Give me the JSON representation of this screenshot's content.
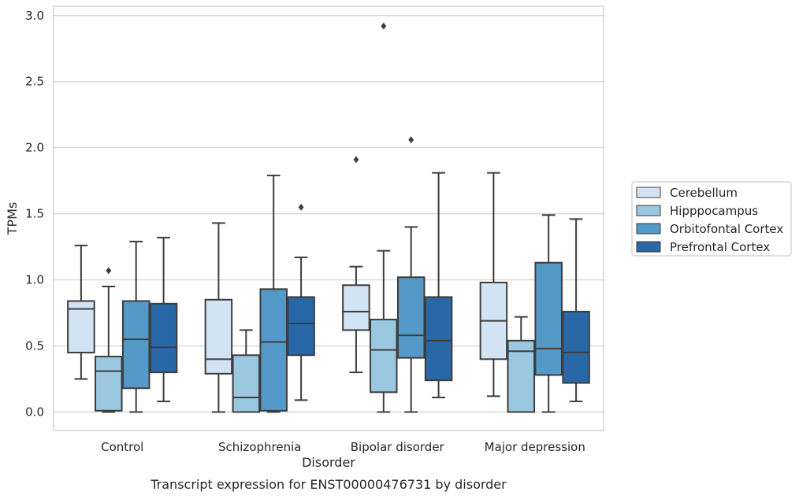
{
  "caption": "Transcript expression for ENST00000476731 by disorder",
  "chart_data": {
    "type": "boxplot",
    "xlabel": "Disorder",
    "ylabel": "TPMs",
    "ylim": [
      -0.14,
      3.07
    ],
    "yticks": [
      "0.0",
      "0.5",
      "1.0",
      "1.5",
      "2.0",
      "2.5",
      "3.0"
    ],
    "grid": true,
    "legend_position": "right",
    "categories": [
      "Control",
      "Schizophrenia",
      "Bipolar disorder",
      "Major depression"
    ],
    "series": [
      {
        "name": "Cerebellum",
        "color": "#d2e3f3",
        "boxes": [
          {
            "whislo": 0.25,
            "q1": 0.45,
            "med": 0.78,
            "q3": 0.84,
            "whishi": 1.26,
            "fliers": []
          },
          {
            "whislo": 0.0,
            "q1": 0.29,
            "med": 0.4,
            "q3": 0.85,
            "whishi": 1.43,
            "fliers": []
          },
          {
            "whislo": 0.3,
            "q1": 0.62,
            "med": 0.76,
            "q3": 0.96,
            "whishi": 1.1,
            "fliers": [
              1.91
            ]
          },
          {
            "whislo": 0.12,
            "q1": 0.4,
            "med": 0.69,
            "q3": 0.98,
            "whishi": 1.81,
            "fliers": []
          }
        ]
      },
      {
        "name": "Hipppocampus",
        "color": "#9ac8e0",
        "boxes": [
          {
            "whislo": 0.0,
            "q1": 0.01,
            "med": 0.31,
            "q3": 0.42,
            "whishi": 0.95,
            "fliers": [
              1.07
            ]
          },
          {
            "whislo": 0.0,
            "q1": 0.0,
            "med": 0.11,
            "q3": 0.43,
            "whishi": 0.62,
            "fliers": []
          },
          {
            "whislo": 0.0,
            "q1": 0.15,
            "med": 0.47,
            "q3": 0.7,
            "whishi": 1.22,
            "fliers": [
              2.92
            ]
          },
          {
            "whislo": 0.0,
            "q1": 0.0,
            "med": 0.46,
            "q3": 0.54,
            "whishi": 0.72,
            "fliers": []
          }
        ]
      },
      {
        "name": "Orbitofontal Cortex",
        "color": "#5499c7",
        "boxes": [
          {
            "whislo": 0.0,
            "q1": 0.18,
            "med": 0.55,
            "q3": 0.84,
            "whishi": 1.29,
            "fliers": []
          },
          {
            "whislo": 0.0,
            "q1": 0.01,
            "med": 0.53,
            "q3": 0.93,
            "whishi": 1.79,
            "fliers": []
          },
          {
            "whislo": 0.0,
            "q1": 0.41,
            "med": 0.58,
            "q3": 1.02,
            "whishi": 1.4,
            "fliers": [
              2.06
            ]
          },
          {
            "whislo": 0.0,
            "q1": 0.28,
            "med": 0.48,
            "q3": 1.13,
            "whishi": 1.49,
            "fliers": []
          }
        ]
      },
      {
        "name": "Prefrontal Cortex",
        "color": "#2868a7",
        "boxes": [
          {
            "whislo": 0.08,
            "q1": 0.3,
            "med": 0.49,
            "q3": 0.82,
            "whishi": 1.32,
            "fliers": []
          },
          {
            "whislo": 0.09,
            "q1": 0.43,
            "med": 0.67,
            "q3": 0.87,
            "whishi": 1.17,
            "fliers": [
              1.55
            ]
          },
          {
            "whislo": 0.11,
            "q1": 0.24,
            "med": 0.54,
            "q3": 0.87,
            "whishi": 1.81,
            "fliers": []
          },
          {
            "whislo": 0.08,
            "q1": 0.22,
            "med": 0.45,
            "q3": 0.76,
            "whishi": 1.46,
            "fliers": []
          }
        ]
      }
    ]
  }
}
